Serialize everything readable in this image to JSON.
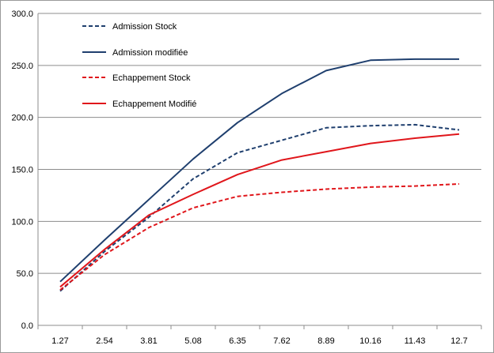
{
  "chart_data": {
    "type": "line",
    "categories": [
      "1.27",
      "2.54",
      "3.81",
      "5.08",
      "6.35",
      "7.62",
      "8.89",
      "10.16",
      "11.43",
      "12.7"
    ],
    "ylim": [
      0,
      300
    ],
    "yticks": [
      "0.0",
      "50.0",
      "100.0",
      "150.0",
      "200.0",
      "250.0",
      "300.0"
    ],
    "grid": "horizontal",
    "legend_placement": "top-left-inside",
    "series": [
      {
        "name": "Admission Stock",
        "color": "#1F3F6E",
        "dash": "dashed",
        "values": [
          33,
          71,
          104,
          141,
          166,
          178,
          190,
          192,
          193,
          188
        ]
      },
      {
        "name": "Admission modifiée",
        "color": "#1F3F6E",
        "dash": "solid",
        "values": [
          42,
          82,
          121,
          160,
          195,
          223,
          245,
          255,
          256,
          256
        ]
      },
      {
        "name": "Echappement Stock",
        "color": "#E0161B",
        "dash": "dashed",
        "values": [
          34,
          68,
          94,
          113,
          124,
          128,
          131,
          133,
          134,
          136
        ]
      },
      {
        "name": "Echappement Modifié",
        "color": "#E0161B",
        "dash": "solid",
        "values": [
          37,
          73,
          106,
          126,
          145,
          159,
          167,
          175,
          180,
          184
        ]
      }
    ]
  }
}
